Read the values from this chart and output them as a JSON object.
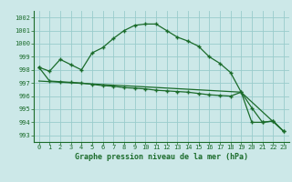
{
  "title": "Graphe pression niveau de la mer (hPa)",
  "bg_color": "#cce8e8",
  "grid_color": "#99cccc",
  "line_color": "#1a6b2a",
  "xlim": [
    -0.5,
    23.5
  ],
  "ylim": [
    992.5,
    1002.5
  ],
  "yticks": [
    993,
    994,
    995,
    996,
    997,
    998,
    999,
    1000,
    1001,
    1002
  ],
  "xticks": [
    0,
    1,
    2,
    3,
    4,
    5,
    6,
    7,
    8,
    9,
    10,
    11,
    12,
    13,
    14,
    15,
    16,
    17,
    18,
    19,
    20,
    21,
    22,
    23
  ],
  "line1": {
    "x": [
      0,
      1,
      2,
      3,
      4,
      5,
      6,
      7,
      8,
      9,
      10,
      11,
      12,
      13,
      14,
      15,
      16,
      17,
      18,
      19,
      20,
      21,
      22,
      23
    ],
    "y": [
      998.2,
      997.9,
      998.8,
      998.4,
      998.0,
      999.3,
      999.7,
      1000.4,
      1001.0,
      1001.4,
      1001.5,
      1001.5,
      1001.0,
      1000.5,
      1000.2,
      999.8,
      999.0,
      998.5,
      997.8,
      996.3,
      994.0,
      994.0,
      994.1,
      993.3
    ]
  },
  "line2": {
    "x": [
      0,
      1,
      2,
      3,
      4,
      5,
      6,
      7,
      8,
      9,
      10,
      11,
      12,
      13,
      14,
      15,
      16,
      17,
      18,
      19,
      20,
      21,
      22,
      23
    ],
    "y": [
      998.2,
      997.15,
      997.1,
      997.05,
      997.0,
      996.9,
      996.8,
      996.75,
      996.65,
      996.6,
      996.55,
      996.45,
      996.4,
      996.35,
      996.3,
      996.2,
      996.1,
      996.05,
      996.0,
      996.3,
      995.1,
      994.0,
      994.1,
      993.3
    ]
  },
  "line3": {
    "x": [
      0,
      19,
      23
    ],
    "y": [
      997.15,
      996.3,
      993.3
    ]
  }
}
